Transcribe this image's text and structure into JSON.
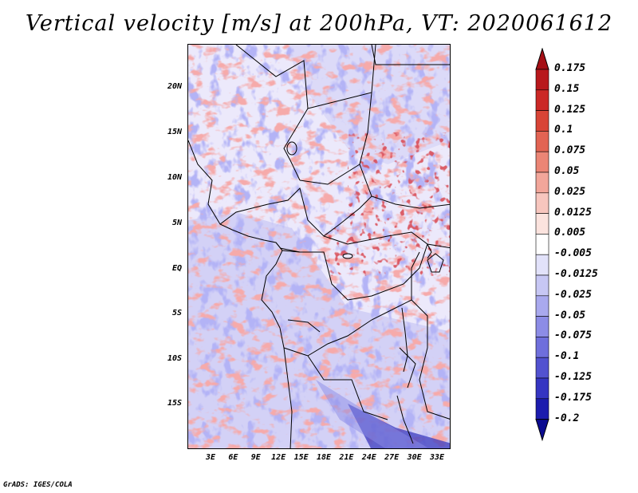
{
  "title": "Vertical velocity [m/s] at 200hPa, VT: 2020061612",
  "lat_ticks": [
    "20N",
    "15N",
    "10N",
    "5N",
    "EQ",
    "5S",
    "10S",
    "15S"
  ],
  "lon_ticks": [
    "3E",
    "6E",
    "9E",
    "12E",
    "15E",
    "18E",
    "21E",
    "24E",
    "27E",
    "30E",
    "33E"
  ],
  "colorbar": {
    "labels": [
      "0.175",
      "0.15",
      "0.125",
      "0.1",
      "0.075",
      "0.05",
      "0.025",
      "0.0125",
      "0.005",
      "-0.005",
      "-0.0125",
      "-0.025",
      "-0.05",
      "-0.075",
      "-0.1",
      "-0.125",
      "-0.175",
      "-0.2"
    ],
    "colors": [
      "#a50f15",
      "#b8181c",
      "#cb2826",
      "#d84436",
      "#e26453",
      "#eb8575",
      "#f2a69a",
      "#f7c6be",
      "#fbe3de",
      "#ffffff",
      "#e2e2fa",
      "#c7c7f4",
      "#a9a9ee",
      "#8c8ce6",
      "#6f6fdc",
      "#5252d0",
      "#3535c2",
      "#1c1cae",
      "#0b0b90"
    ]
  },
  "footer": "GrADS: IGES/COLA"
}
